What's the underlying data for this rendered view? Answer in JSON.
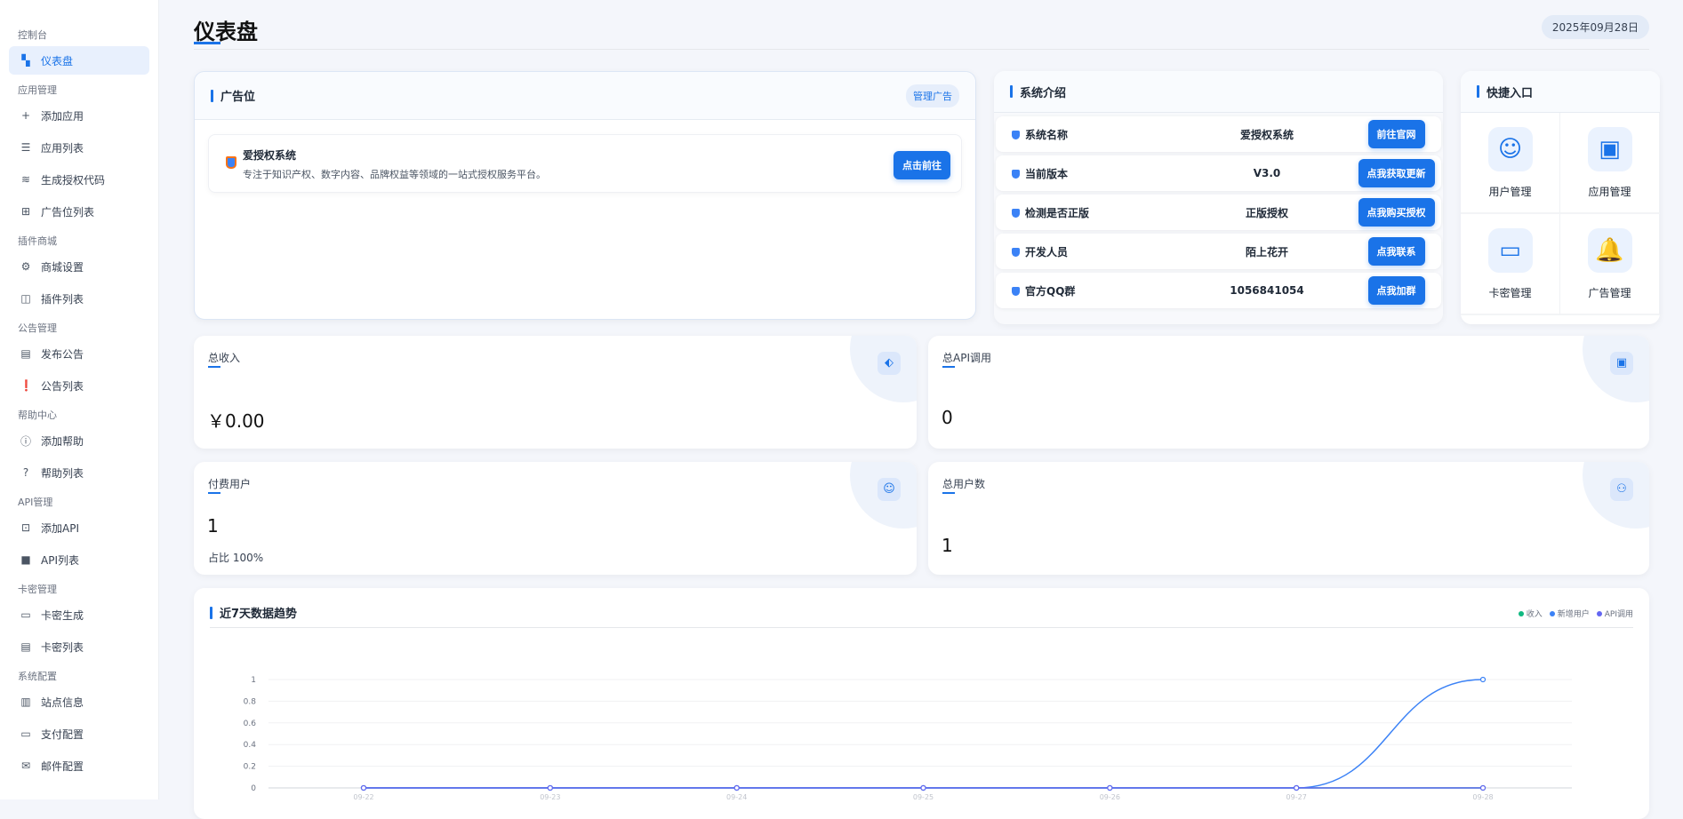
{
  "sidebar": {
    "sections": [
      {
        "title": "控制台",
        "items": [
          {
            "label": "仪表盘",
            "icon": "dashboard-icon"
          }
        ]
      },
      {
        "title": "应用管理",
        "items": [
          {
            "label": "添加应用",
            "icon": "plus-icon"
          },
          {
            "label": "应用列表",
            "icon": "list-icon"
          },
          {
            "label": "生成授权代码",
            "icon": "layers-icon"
          },
          {
            "label": "广告位列表",
            "icon": "add-box-icon"
          }
        ]
      },
      {
        "title": "插件商城",
        "items": [
          {
            "label": "商城设置",
            "icon": "gear-icon"
          },
          {
            "label": "插件列表",
            "icon": "bag-icon"
          }
        ]
      },
      {
        "title": "公告管理",
        "items": [
          {
            "label": "发布公告",
            "icon": "message-icon"
          },
          {
            "label": "公告列表",
            "icon": "alert-message-icon"
          }
        ]
      },
      {
        "title": "帮助中心",
        "items": [
          {
            "label": "添加帮助",
            "icon": "info-icon"
          },
          {
            "label": "帮助列表",
            "icon": "question-icon"
          }
        ]
      },
      {
        "title": "API管理",
        "items": [
          {
            "label": "添加API",
            "icon": "api-add-icon"
          },
          {
            "label": "API列表",
            "icon": "api-list-icon"
          }
        ]
      },
      {
        "title": "卡密管理",
        "items": [
          {
            "label": "卡密生成",
            "icon": "card-icon"
          },
          {
            "label": "卡密列表",
            "icon": "card-list-icon"
          }
        ]
      },
      {
        "title": "系统配置",
        "items": [
          {
            "label": "站点信息",
            "icon": "building-icon"
          },
          {
            "label": "支付配置",
            "icon": "card-icon"
          },
          {
            "label": "邮件配置",
            "icon": "mail-icon"
          }
        ]
      }
    ]
  },
  "header": {
    "title": "仪表盘",
    "date": "2025年09月28日"
  },
  "ad": {
    "title": "广告位",
    "manage": "管理广告",
    "item_title": "爱授权系统",
    "item_desc": "专注于知识产权、数字内容、品牌权益等领域的一站式授权服务平台。",
    "item_button": "点击前往"
  },
  "intro": {
    "title": "系统介绍",
    "rows": [
      {
        "key": "系统名称",
        "value": "爱授权系统",
        "action": "前往官网"
      },
      {
        "key": "当前版本",
        "value": "V3.0",
        "action": "点我获取更新"
      },
      {
        "key": "检测是否正版",
        "value": "正版授权",
        "action": "点我购买授权"
      },
      {
        "key": "开发人员",
        "value": "陌上花开",
        "action": "点我联系"
      },
      {
        "key": "官方QQ群",
        "value": "1056841054",
        "action": "点我加群"
      }
    ]
  },
  "quick": {
    "title": "快捷入口",
    "items": [
      {
        "label": "用户管理",
        "icon": "user-icon"
      },
      {
        "label": "应用管理",
        "icon": "app-icon"
      },
      {
        "label": "卡密管理",
        "icon": "card-icon"
      },
      {
        "label": "广告管理",
        "icon": "bell-icon"
      }
    ]
  },
  "stats": {
    "revenue": {
      "label": "总收入",
      "value": "￥0.00",
      "icon": "tag-icon"
    },
    "api": {
      "label": "总API调用",
      "value": "0",
      "icon": "api-icon"
    },
    "paid": {
      "label": "付费用户",
      "value": "1",
      "sub": "占比 100%",
      "icon": "user-icon"
    },
    "users": {
      "label": "总用户数",
      "value": "1",
      "icon": "users-icon"
    }
  },
  "chart_data": {
    "type": "line",
    "title": "近7天数据趋势",
    "categories": [
      "09-22",
      "09-23",
      "09-24",
      "09-25",
      "09-26",
      "09-27",
      "09-28"
    ],
    "ylim": [
      0,
      1
    ],
    "yticks": [
      "0",
      "0.2",
      "0.4",
      "0.6",
      "0.8",
      "1"
    ],
    "grid": true,
    "legend": "top-right",
    "series": [
      {
        "name": "收入",
        "values": [
          0,
          0,
          0,
          0,
          0,
          0,
          0
        ],
        "color": "#10b981"
      },
      {
        "name": "新增用户",
        "values": [
          0,
          0,
          0,
          0,
          0,
          0,
          1
        ],
        "color": "#3b82f6"
      },
      {
        "name": "API调用",
        "values": [
          0,
          0,
          0,
          0,
          0,
          0,
          0
        ],
        "color": "#6366f1"
      }
    ]
  }
}
